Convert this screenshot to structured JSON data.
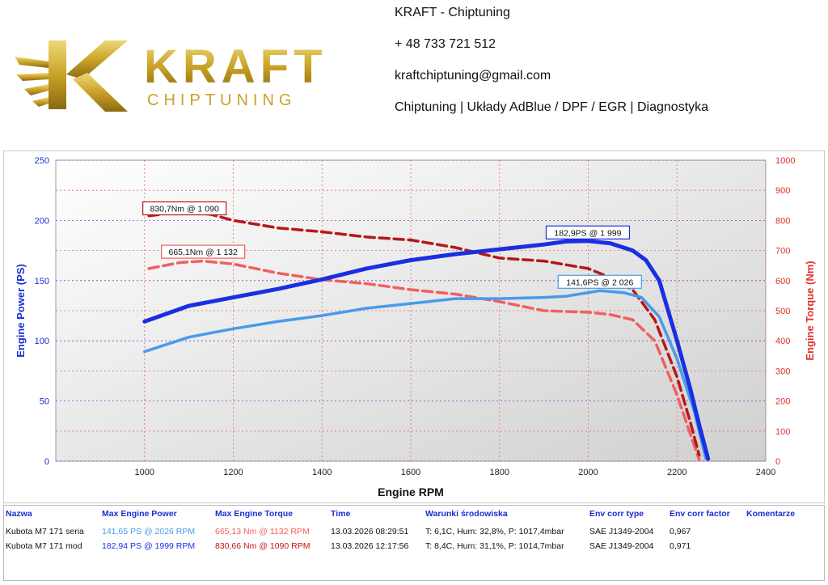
{
  "header": {
    "logo_word": "KRAFT",
    "logo_sub": "CHIPTUNING",
    "company": "KRAFT - Chiptuning",
    "phone": "+ 48 733 721 512",
    "email": "kraftchiptuning@gmail.com",
    "services": "Chiptuning | Układy AdBlue / DPF / EGR | Diagnostyka"
  },
  "colors": {
    "gold": "#c9a227",
    "power_mod": "#1a2fe0",
    "power_stock": "#4a9aea",
    "torque_mod": "#b81818",
    "torque_stock": "#f06060",
    "axis_left": "#1a2fd0",
    "axis_right": "#e03030"
  },
  "chart_data": {
    "type": "line",
    "xlabel": "Engine RPM",
    "ylabel": "Engine Power (PS)",
    "ylabel_right": "Engine Torque (Nm)",
    "xlim": [
      800,
      2400
    ],
    "ylim": [
      0,
      250
    ],
    "ylim_right": [
      0,
      1000
    ],
    "x_ticks": [
      "1000",
      "1200",
      "1400",
      "1600",
      "1800",
      "2000",
      "2200",
      "2400"
    ],
    "y_ticks": [
      "0",
      "50",
      "100",
      "150",
      "200",
      "250"
    ],
    "y_ticks_right": [
      "0",
      "100",
      "200",
      "300",
      "400",
      "500",
      "600",
      "700",
      "800",
      "900",
      "1000"
    ],
    "grid": true,
    "series": [
      {
        "axis": "left",
        "style": "solid",
        "color": "#1a2fe0",
        "x": [
          1000,
          1100,
          1200,
          1300,
          1400,
          1500,
          1600,
          1700,
          1800,
          1900,
          1950,
          1999,
          2050,
          2100,
          2130,
          2160,
          2200,
          2230,
          2250,
          2270
        ],
        "y": [
          116,
          129,
          136,
          143,
          151,
          160,
          167,
          172,
          176,
          180,
          182.5,
          182.9,
          181,
          175,
          167,
          150,
          100,
          60,
          30,
          2
        ]
      },
      {
        "axis": "left",
        "style": "solid",
        "color": "#4a9aea",
        "x": [
          1000,
          1100,
          1200,
          1300,
          1400,
          1500,
          1600,
          1700,
          1800,
          1900,
          1950,
          2026,
          2080,
          2120,
          2160,
          2200,
          2240,
          2265
        ],
        "y": [
          91,
          103,
          110,
          116,
          121,
          127,
          131,
          135,
          135,
          136,
          137,
          141.6,
          140,
          136,
          120,
          85,
          40,
          2
        ]
      },
      {
        "axis": "right",
        "style": "dashed",
        "color": "#b81818",
        "x": [
          1010,
          1090,
          1150,
          1200,
          1300,
          1400,
          1500,
          1600,
          1700,
          1800,
          1900,
          2000,
          2050,
          2100,
          2150,
          2200,
          2230,
          2250
        ],
        "y": [
          815,
          830.7,
          820,
          800,
          775,
          762,
          745,
          735,
          710,
          675,
          665,
          640,
          610,
          570,
          470,
          280,
          130,
          20
        ]
      },
      {
        "axis": "right",
        "style": "dashed",
        "color": "#f06060",
        "x": [
          1010,
          1080,
          1132,
          1200,
          1300,
          1400,
          1500,
          1600,
          1700,
          1800,
          1900,
          2000,
          2050,
          2100,
          2150,
          2200,
          2230,
          2250
        ],
        "y": [
          640,
          660,
          665.1,
          655,
          625,
          603,
          590,
          570,
          555,
          530,
          500,
          495,
          487,
          470,
          400,
          220,
          90,
          5
        ]
      }
    ],
    "annotations": [
      {
        "text": "830,7Nm @ 1 090",
        "x": 1090,
        "y": 210,
        "border": "#b81818"
      },
      {
        "text": "665,1Nm @ 1 132",
        "x": 1132,
        "y": 174,
        "border": "#f06060"
      },
      {
        "text": "182,9PS @ 1 999",
        "x": 1999,
        "y": 190,
        "border": "#1a2fe0"
      },
      {
        "text": "141,6PS @ 2 026",
        "x": 2026,
        "y": 149,
        "border": "#4a9aea"
      }
    ]
  },
  "legend": {
    "headers": [
      "Nazwa",
      "Max Engine Power",
      "Max Engine Torque",
      "Time",
      "Warunki środowiska",
      "Env corr type",
      "Env corr factor",
      "Komentarze"
    ],
    "rows": [
      {
        "name": "Kubota M7 171 seria",
        "power": "141,65 PS @ 2026 RPM",
        "torque": "665,13 Nm @ 1132 RPM",
        "time": "13.03.2026 08:29:51",
        "conditions": "T: 6,1C, Hum: 32,8%, P: 1017,4mbar",
        "corr_type": "SAE J1349-2004",
        "corr_factor": "0,967",
        "comment": ""
      },
      {
        "name": "Kubota M7 171 mod",
        "power": "182,94 PS @ 1999 RPM",
        "torque": "830,66 Nm @ 1090 RPM",
        "time": "13.03.2026 12:17:56",
        "conditions": "T: 8,4C, Hum: 31,1%, P: 1014,7mbar",
        "corr_type": "SAE J1349-2004",
        "corr_factor": "0,971",
        "comment": ""
      }
    ]
  }
}
